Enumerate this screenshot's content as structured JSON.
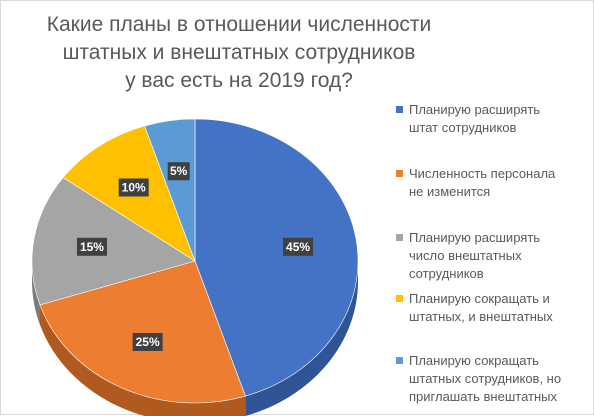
{
  "chart_data": {
    "type": "pie",
    "title_lines": [
      "Какие планы в отношении численности",
      "штатных и внештатных сотрудников",
      "у вас есть на 2019 год?"
    ],
    "legend_position": "right",
    "slices": [
      {
        "label_lines": [
          "Планирую расширять",
          "штат сотрудников"
        ],
        "value": 45,
        "data_label": "45%",
        "color": "#4472c4",
        "dark": "#2f5597"
      },
      {
        "label_lines": [
          "Численность персонала",
          "не изменится"
        ],
        "value": 25,
        "data_label": "25%",
        "color": "#ed7d31",
        "dark": "#b05a1f"
      },
      {
        "label_lines": [
          "Планирую расширять",
          "число внештатных",
          "сотрудников"
        ],
        "value": 15,
        "data_label": "15%",
        "color": "#a5a5a5",
        "dark": "#7b7b7b"
      },
      {
        "label_lines": [
          "Планирую сокращать и",
          "штатных, и внештатных"
        ],
        "value": 10,
        "data_label": "10%",
        "color": "#ffc000",
        "dark": "#bf9000"
      },
      {
        "label_lines": [
          "Планирую сокращать",
          "штатных сотрудников, но",
          "приглашать внештатных"
        ],
        "value": 5,
        "data_label": "5%",
        "color": "#5b9bd5",
        "dark": "#3f7ab0"
      }
    ],
    "data_label_style": {
      "background": "#404040",
      "text_color": "#ffffff"
    }
  }
}
